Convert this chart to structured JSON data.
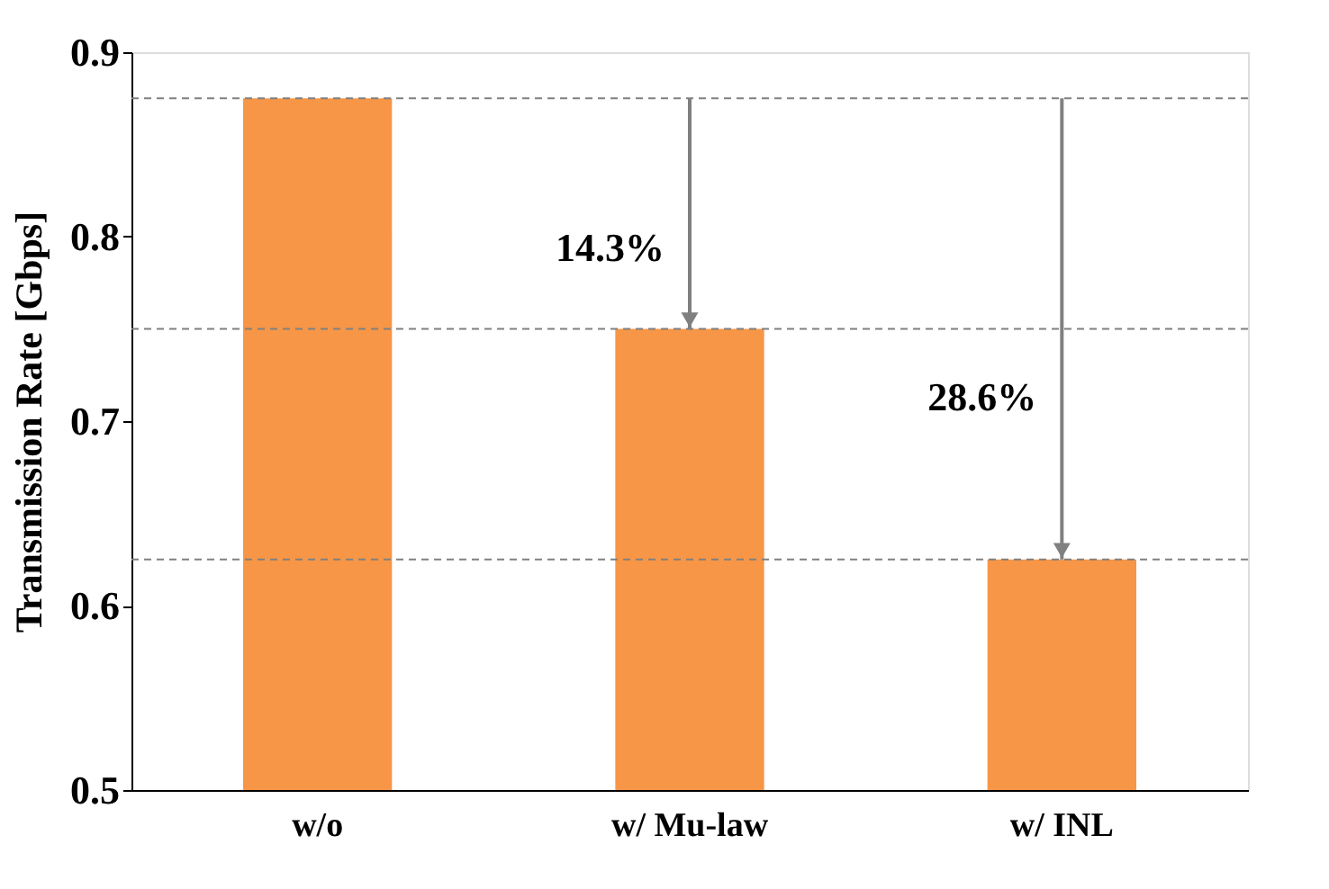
{
  "chart_data": {
    "type": "bar",
    "ylabel": "Transmission Rate [Gbps]",
    "categories": [
      "w/o",
      "w/ Mu-law",
      "w/ INL"
    ],
    "values": [
      0.875,
      0.75,
      0.625
    ],
    "color": "#f79646",
    "ylim": [
      0.5,
      0.9
    ],
    "yticks": [
      0.5,
      0.6,
      0.7,
      0.8,
      0.9
    ],
    "grid": false,
    "ref_lines": [
      {
        "axis": "y",
        "value": 0.875,
        "color": "#808080",
        "line_style": "dashed"
      },
      {
        "axis": "y",
        "value": 0.75,
        "color": "#808080",
        "line_style": "dashed"
      },
      {
        "axis": "y",
        "value": 0.625,
        "color": "#808080",
        "line_style": "dashed"
      }
    ],
    "annotations": [
      "14.3%",
      "28.6%"
    ]
  }
}
